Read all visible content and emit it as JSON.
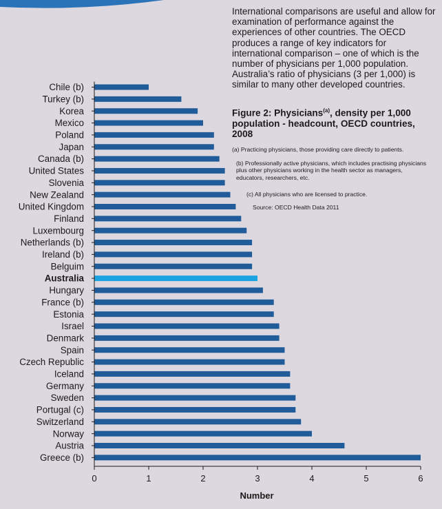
{
  "text": {
    "intro": "International comparisons are useful and allow for examination of performance against the experiences of other countries. The OECD produces a range of key indicators for international comparison – one of which is the number of physicians per 1,000 population. Australia’s ratio of physicians (3 per 1,000) is similar to many other developed countries.",
    "figure_title_pre": "Figure 2: Physicians",
    "figure_title_sup": "(a)",
    "figure_title_post": ", density per 1,000 population - headcount, OECD countries, 2008",
    "note_a": "(a) Practicing physicians, those providing care directly to patients.",
    "note_b": "(b) Professionally active physicians, which includes practising physicians plus other physicians working in the health sector as managers, educators, researchers, etc.",
    "note_c": "(c) All physicians who are licensed to practice.",
    "source": "Source: OECD Health Data 2011"
  },
  "colors": {
    "background": "#ddd8df",
    "bar": "#1f5c99",
    "highlight": "#1aa3e0",
    "decoration": "#2a73b8"
  },
  "chart_data": {
    "type": "bar",
    "orientation": "horizontal",
    "xlabel": "Number",
    "ylabel": "",
    "xlim": [
      0,
      6
    ],
    "xticks": [
      0,
      1,
      2,
      3,
      4,
      5,
      6
    ],
    "grid": false,
    "highlight_category": "Australia",
    "categories": [
      "Chile (b)",
      "Turkey (b)",
      "Korea",
      "Mexico",
      "Poland",
      "Japan",
      "Canada (b)",
      "United States",
      "Slovenia",
      "New Zealand",
      "United Kingdom",
      "Finland",
      "Luxembourg",
      "Netherlands (b)",
      "Ireland (b)",
      "Belguim",
      "Australia",
      "Hungary",
      "France (b)",
      "Estonia",
      "Israel",
      "Denmark",
      "Spain",
      "Czech Republic",
      "Iceland",
      "Germany",
      "Sweden",
      "Portugal (c)",
      "Switzerland",
      "Norway",
      "Austria",
      "Greece (b)"
    ],
    "values": [
      1.0,
      1.6,
      1.9,
      2.0,
      2.2,
      2.2,
      2.3,
      2.4,
      2.4,
      2.5,
      2.6,
      2.7,
      2.8,
      2.9,
      2.9,
      2.9,
      3.0,
      3.1,
      3.3,
      3.3,
      3.4,
      3.4,
      3.5,
      3.5,
      3.6,
      3.6,
      3.7,
      3.7,
      3.8,
      4.0,
      4.6,
      6.0
    ]
  }
}
